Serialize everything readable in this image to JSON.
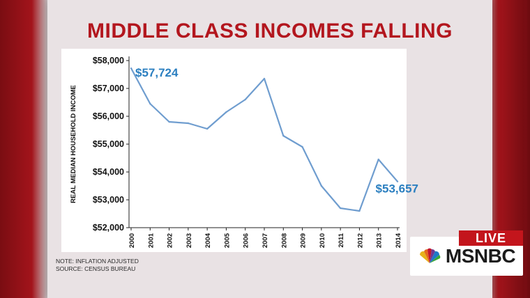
{
  "headline": "MIDDLE CLASS INCOMES FALLING",
  "notes": {
    "line1": "NOTE: INFLATION ADJUSTED",
    "line2": "SOURCE: CENSUS BUREAU"
  },
  "broadcast": {
    "live_label": "LIVE",
    "network_logo": "MSNBC",
    "logo_icon": "peacock-icon"
  },
  "colors": {
    "headline": "#b3161e",
    "line": "#6f9dcf",
    "callout": "#2b7fc0",
    "live_badge": "#c3151c"
  },
  "chart_data": {
    "type": "line",
    "title": "MIDDLE CLASS INCOMES FALLING",
    "ylabel": "REAL MEDIAN HOUSEHOLD INCOME",
    "xlabel": "",
    "x": [
      "2000",
      "2001",
      "2002",
      "2003",
      "2004",
      "2005",
      "2006",
      "2007",
      "2008",
      "2009",
      "2010",
      "2011",
      "2012",
      "2013",
      "2014"
    ],
    "values": [
      57724,
      56450,
      55800,
      55750,
      55550,
      56150,
      56600,
      57350,
      55300,
      54900,
      53500,
      52700,
      52600,
      54450,
      53657
    ],
    "ylim": [
      52000,
      58000
    ],
    "yticks": [
      52000,
      53000,
      54000,
      55000,
      56000,
      57000,
      58000
    ],
    "ytick_labels": [
      "$52,000",
      "$53,000",
      "$54,000",
      "$55,000",
      "$56,000",
      "$57,000",
      "$58,000"
    ],
    "grid": false,
    "annotations": [
      {
        "text": "$57,724",
        "at": "2000"
      },
      {
        "text": "$53,657",
        "at": "2014"
      }
    ]
  }
}
